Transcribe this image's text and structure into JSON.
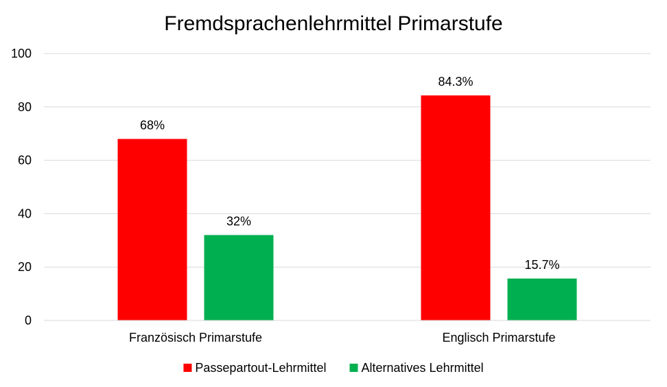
{
  "chart_data": {
    "type": "bar",
    "title": "Fremdsprachenlehrmittel Primarstufe",
    "xlabel": "",
    "ylabel": "",
    "categories": [
      "Französisch Primarstufe",
      "Englisch Primarstufe"
    ],
    "series": [
      {
        "name": "Passepartout-Lehrmittel",
        "values": [
          68,
          84.3
        ],
        "labels": [
          "68%",
          "84.3%"
        ],
        "color": "#ff0000"
      },
      {
        "name": "Alternatives Lehrmittel",
        "values": [
          32,
          15.7
        ],
        "labels": [
          "32%",
          "15.7%"
        ],
        "color": "#00b050"
      }
    ],
    "yticks": [
      "0",
      "20",
      "40",
      "60",
      "80",
      "100"
    ],
    "ylim": [
      0,
      100
    ],
    "grid": true,
    "legend_position": "bottom"
  }
}
